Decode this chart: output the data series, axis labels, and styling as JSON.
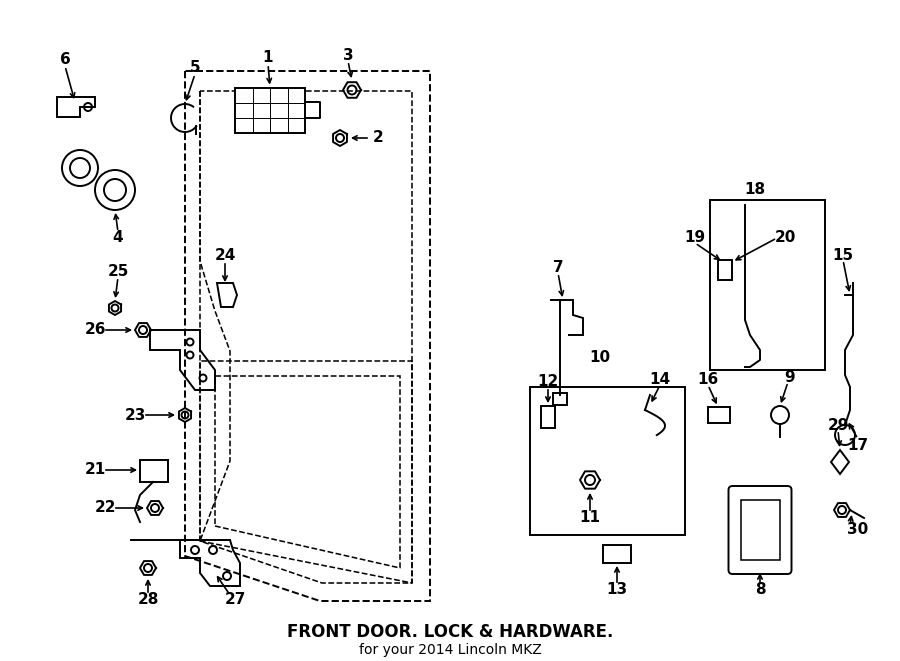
{
  "title": "FRONT DOOR. LOCK & HARDWARE.",
  "subtitle": "for your 2014 Lincoln MKZ",
  "bg_color": "#ffffff",
  "line_color": "#000000",
  "fig_width": 9.0,
  "fig_height": 6.61,
  "dpi": 100
}
